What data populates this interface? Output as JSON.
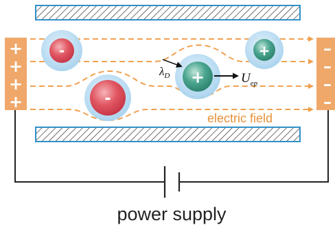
{
  "labels": {
    "electric_field": "electric field",
    "power_supply": "power supply",
    "debye_symbol": "λ",
    "debye_sub": "D",
    "velocity_symbol": "U",
    "velocity_sub": "ep"
  },
  "electrodes": {
    "left_sign": "+",
    "right_sign": "–",
    "sign_count": 4
  },
  "particles": [
    {
      "name": "small-negative-particle",
      "sign": "-",
      "color": "#d94b57"
    },
    {
      "name": "large-negative-particle",
      "sign": "-",
      "color": "#d94b57"
    },
    {
      "name": "center-positive-particle",
      "sign": "+",
      "color": "#3f9d86"
    },
    {
      "name": "small-positive-particle",
      "sign": "+",
      "color": "#3f9d86"
    }
  ],
  "colors": {
    "electrode": "#f0a86a",
    "field_line": "#f0a050",
    "wall_border": "#2f8fc7",
    "halo": "#a9d4ef",
    "wire": "#222222"
  }
}
